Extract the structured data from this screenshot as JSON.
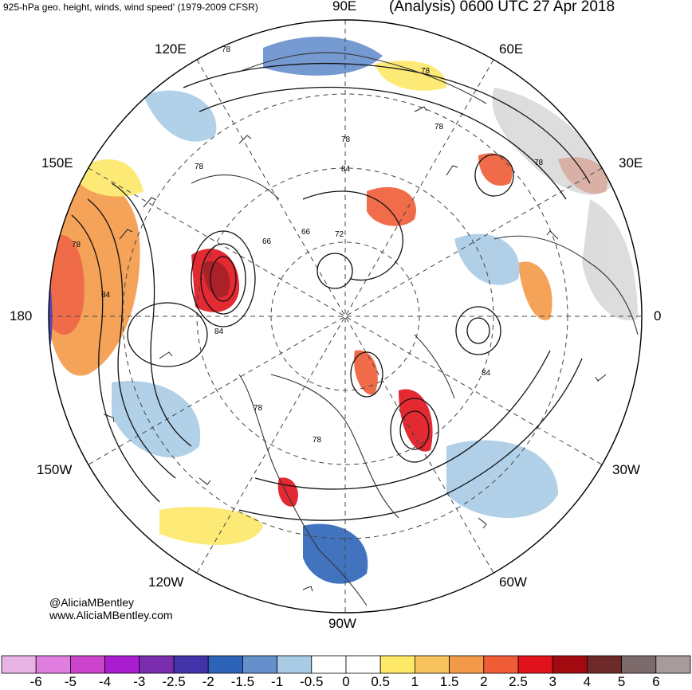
{
  "header": {
    "title_left": "925-hPa geo. height, winds, wind speed' (1979-2009 CFSR)",
    "title_right": "(Analysis) 0600 UTC 27 Apr 2018"
  },
  "longitude_labels": {
    "lon_90e": "90E",
    "lon_120e": "120E",
    "lon_60e": "60E",
    "lon_150e": "150E",
    "lon_30e": "30E",
    "lon_180": "180",
    "lon_0": "0",
    "lon_150w": "150W",
    "lon_30w": "30W",
    "lon_120w": "120W",
    "lon_60w": "60W",
    "lon_90w": "90W"
  },
  "contour_labels": [
    "78",
    "78",
    "78",
    "78",
    "78",
    "84",
    "66",
    "66",
    "72",
    "78",
    "84",
    "84",
    "78",
    "78",
    "84",
    "78"
  ],
  "credits": {
    "handle": "@AliciaMBentley",
    "site": "www.AliciaMBentley.com"
  },
  "colorbar": {
    "colors": [
      "#e8b4e6",
      "#e07ee0",
      "#cc44cc",
      "#aa1ccf",
      "#7a2eae",
      "#4333a8",
      "#2e64b8",
      "#6690cc",
      "#a9cce6",
      "#ffffff",
      "#ffffff",
      "#fde868",
      "#f7c35c",
      "#f39a48",
      "#ef5c36",
      "#e0121c",
      "#a20a10",
      "#6e2a28",
      "#7d6b6b",
      "#a89b9b"
    ],
    "labels": [
      "-6",
      "-5",
      "-4",
      "-3",
      "-2.5",
      "-2",
      "-1.5",
      "-1",
      "-0.5",
      "0",
      "0.5",
      "1",
      "1.5",
      "2",
      "2.5",
      "3",
      "4",
      "5",
      "6"
    ]
  }
}
